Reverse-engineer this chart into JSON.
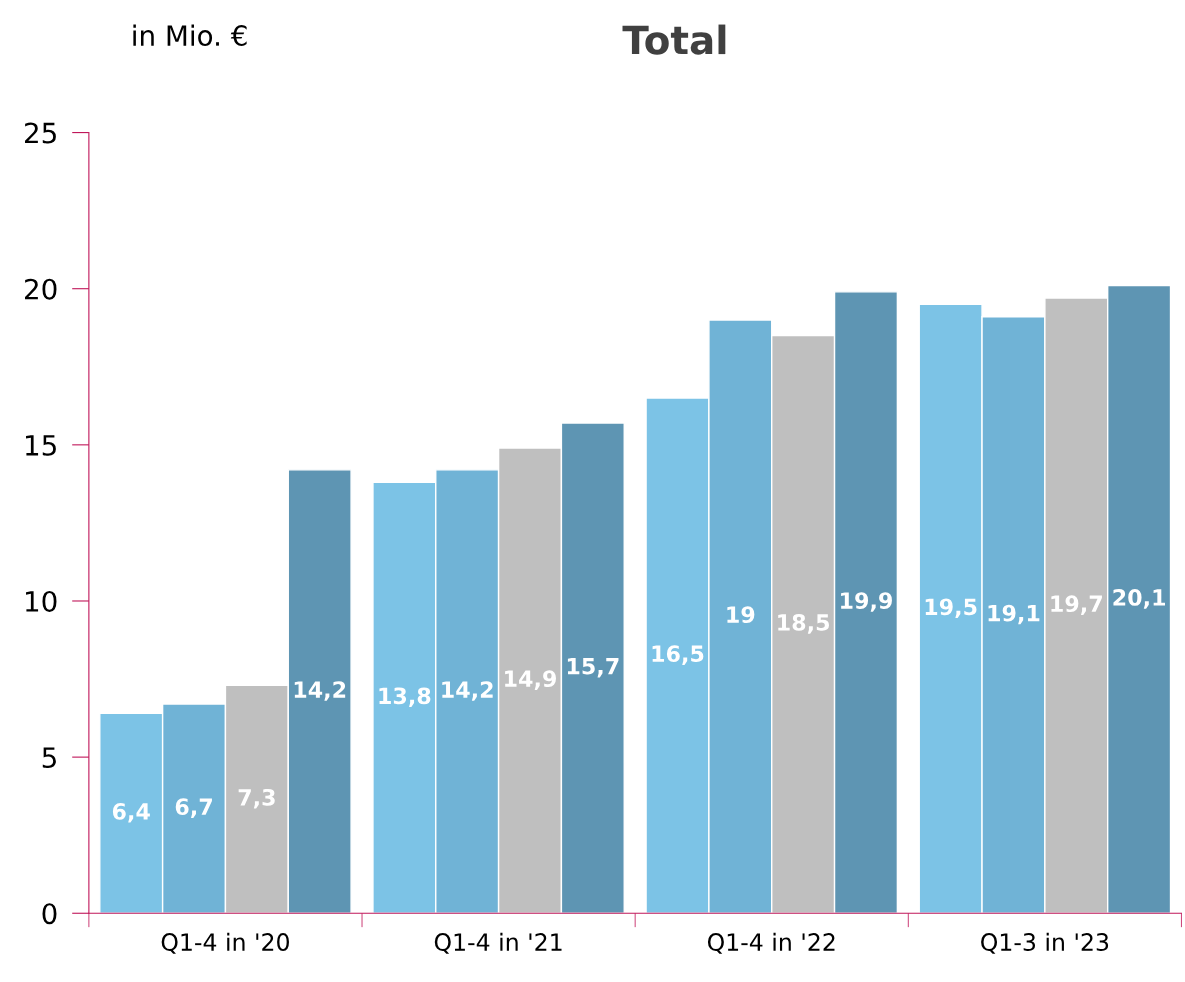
{
  "chart_data": {
    "type": "bar",
    "title": "Total",
    "ylabel": "in Mio. €",
    "categories": [
      "Q1-4 in '20",
      "Q1-4 in '21",
      "Q1-4 in '22",
      "Q1-3 in '23"
    ],
    "series": [
      {
        "color": "#7cc3e6",
        "values": [
          6.4,
          13.8,
          16.5,
          19.5
        ],
        "value_labels": [
          "6,4",
          "13,8",
          "16,5",
          "19,5"
        ]
      },
      {
        "color": "#70b3d6",
        "values": [
          6.7,
          14.2,
          19,
          19.1
        ],
        "value_labels": [
          "6,7",
          "14,2",
          "19",
          "19,1"
        ]
      },
      {
        "color": "#bfbfbf",
        "values": [
          7.3,
          14.9,
          18.5,
          19.7
        ],
        "value_labels": [
          "7,3",
          "14,9",
          "18,5",
          "19,7"
        ]
      },
      {
        "color": "#5e95b3",
        "values": [
          14.2,
          15.7,
          19.9,
          20.1
        ],
        "value_labels": [
          "14,2",
          "15,7",
          "19,9",
          "20,1"
        ]
      }
    ],
    "ylim": [
      0,
      25
    ],
    "yticks": [
      0,
      5,
      10,
      15,
      20,
      25
    ],
    "grid": false
  }
}
